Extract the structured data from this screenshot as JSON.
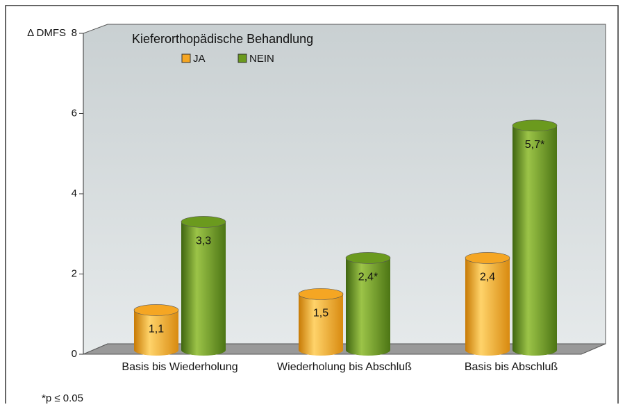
{
  "chart_data": {
    "type": "bar",
    "y_label": "Δ DMFS",
    "legend_title": "Kieferorthopädische Behandlung",
    "categories": [
      "Basis bis Wiederholung",
      "Wiederholung bis Abschluß",
      "Basis bis Abschluß"
    ],
    "series": [
      {
        "name": "JA",
        "color": "#f5a623",
        "values": [
          1.1,
          1.5,
          2.4
        ],
        "value_labels": [
          "1,1",
          "1,5",
          "2,4"
        ]
      },
      {
        "name": "NEIN",
        "color": "#6b9a1e",
        "values": [
          3.3,
          2.4,
          5.7
        ],
        "value_labels": [
          "3,3",
          "2,4*",
          "5,7*"
        ]
      }
    ],
    "ylim": [
      0,
      8
    ],
    "yticks": [
      0,
      2,
      4,
      6,
      8
    ],
    "footnote": "*p ≤ 0.05"
  }
}
